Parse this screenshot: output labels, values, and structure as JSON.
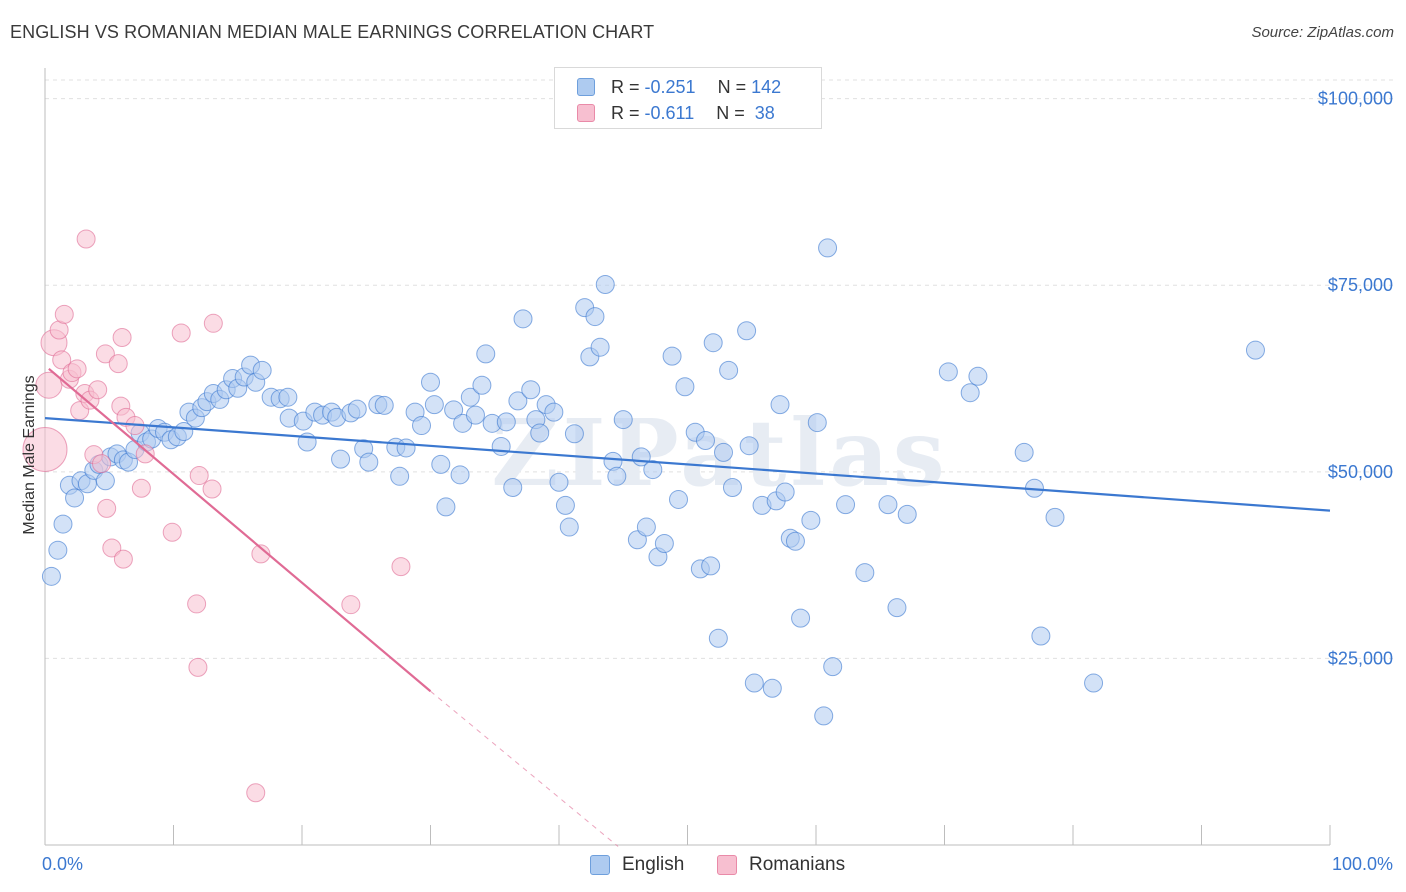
{
  "title": "ENGLISH VS ROMANIAN MEDIAN MALE EARNINGS CORRELATION CHART",
  "source": "Source: ZipAtlas.com",
  "watermark": "ZIPatlas",
  "legend": {
    "rows": [
      {
        "r_label": "R = ",
        "r_value": "-0.251",
        "n_label": "N = ",
        "n_value": "142",
        "fill": "#aecbf0",
        "stroke": "#6e9fdc"
      },
      {
        "r_label": "R = ",
        "r_value": "-0.611",
        "n_label": "N = ",
        "n_value": " 38",
        "fill": "#f7bfd0",
        "stroke": "#e98aa8"
      }
    ]
  },
  "bottom_legend": [
    {
      "label": "English",
      "fill": "#aecbf0",
      "stroke": "#6e9fdc"
    },
    {
      "label": "Romanians",
      "fill": "#f7bfd0",
      "stroke": "#e98aa8"
    }
  ],
  "chart_data": {
    "type": "scatter",
    "ylabel": "Median Male Earnings",
    "x_tick_labels": [
      "0.0%",
      "100.0%"
    ],
    "y_ticks": [
      {
        "value": 25000,
        "label": "$25,000"
      },
      {
        "value": 50000,
        "label": "$50,000"
      },
      {
        "value": 75000,
        "label": "$75,000"
      },
      {
        "value": 100000,
        "label": "$100,000"
      }
    ],
    "xlim": [
      0,
      100
    ],
    "ylim": [
      0,
      102500
    ],
    "grid": true,
    "series": [
      {
        "name": "English",
        "color": "#3b78d0",
        "fill": "#aecbf0",
        "trend": {
          "x0": 0,
          "y0": 57200,
          "x1": 100,
          "y1": 44800,
          "dashed_to": null
        },
        "points": [
          [
            0.5,
            36000
          ],
          [
            1.0,
            39500
          ],
          [
            1.4,
            43000
          ],
          [
            1.9,
            48200
          ],
          [
            2.3,
            46500
          ],
          [
            2.8,
            48800
          ],
          [
            3.3,
            48400
          ],
          [
            3.8,
            50200
          ],
          [
            4.2,
            51000
          ],
          [
            4.7,
            48800
          ],
          [
            5.1,
            52000
          ],
          [
            5.6,
            52400
          ],
          [
            6.1,
            51600
          ],
          [
            6.5,
            51300
          ],
          [
            7.0,
            53000
          ],
          [
            7.4,
            55200
          ],
          [
            7.9,
            54000
          ],
          [
            8.3,
            54400
          ],
          [
            8.8,
            55800
          ],
          [
            9.3,
            55300
          ],
          [
            9.8,
            54300
          ],
          [
            10.3,
            54700
          ],
          [
            10.8,
            55400
          ],
          [
            11.2,
            58000
          ],
          [
            11.7,
            57200
          ],
          [
            12.2,
            58600
          ],
          [
            12.6,
            59400
          ],
          [
            13.1,
            60500
          ],
          [
            13.6,
            59700
          ],
          [
            14.1,
            61000
          ],
          [
            14.6,
            62500
          ],
          [
            15.0,
            61200
          ],
          [
            15.5,
            62700
          ],
          [
            16.0,
            64300
          ],
          [
            16.4,
            62000
          ],
          [
            16.9,
            63600
          ],
          [
            17.6,
            60000
          ],
          [
            18.3,
            59800
          ],
          [
            18.9,
            60000
          ],
          [
            19.0,
            57200
          ],
          [
            20.1,
            56800
          ],
          [
            20.4,
            54000
          ],
          [
            21.0,
            58000
          ],
          [
            21.6,
            57600
          ],
          [
            22.3,
            58000
          ],
          [
            22.7,
            57300
          ],
          [
            23.0,
            51700
          ],
          [
            23.8,
            57900
          ],
          [
            24.3,
            58400
          ],
          [
            24.8,
            53100
          ],
          [
            25.2,
            51300
          ],
          [
            25.9,
            59000
          ],
          [
            26.4,
            58900
          ],
          [
            27.3,
            53300
          ],
          [
            27.6,
            49400
          ],
          [
            28.1,
            53200
          ],
          [
            28.8,
            58000
          ],
          [
            29.3,
            56200
          ],
          [
            30.0,
            62000
          ],
          [
            30.3,
            59000
          ],
          [
            30.8,
            51000
          ],
          [
            31.2,
            45300
          ],
          [
            31.8,
            58300
          ],
          [
            32.3,
            49600
          ],
          [
            32.5,
            56500
          ],
          [
            33.1,
            60000
          ],
          [
            33.5,
            57600
          ],
          [
            34.0,
            61600
          ],
          [
            34.3,
            65800
          ],
          [
            34.8,
            56500
          ],
          [
            35.5,
            53400
          ],
          [
            35.9,
            56700
          ],
          [
            36.4,
            47900
          ],
          [
            36.8,
            59500
          ],
          [
            37.2,
            70500
          ],
          [
            37.8,
            61000
          ],
          [
            38.2,
            57000
          ],
          [
            38.5,
            55200
          ],
          [
            39.0,
            59000
          ],
          [
            39.6,
            58000
          ],
          [
            40.0,
            48600
          ],
          [
            40.5,
            45500
          ],
          [
            40.8,
            42600
          ],
          [
            41.2,
            55100
          ],
          [
            42.0,
            72000
          ],
          [
            42.4,
            65400
          ],
          [
            42.8,
            70800
          ],
          [
            43.2,
            66700
          ],
          [
            43.6,
            75100
          ],
          [
            44.2,
            51400
          ],
          [
            44.5,
            49400
          ],
          [
            45.0,
            57000
          ],
          [
            46.1,
            40900
          ],
          [
            46.4,
            52000
          ],
          [
            46.8,
            42600
          ],
          [
            47.3,
            50300
          ],
          [
            47.7,
            38600
          ],
          [
            48.2,
            40400
          ],
          [
            48.8,
            65500
          ],
          [
            49.3,
            46300
          ],
          [
            49.8,
            61400
          ],
          [
            50.6,
            55300
          ],
          [
            51.0,
            37000
          ],
          [
            51.4,
            54200
          ],
          [
            51.8,
            37400
          ],
          [
            52.0,
            67300
          ],
          [
            52.4,
            27700
          ],
          [
            52.8,
            52600
          ],
          [
            53.2,
            63600
          ],
          [
            53.5,
            47900
          ],
          [
            54.6,
            68900
          ],
          [
            54.8,
            53500
          ],
          [
            55.2,
            21700
          ],
          [
            55.8,
            45500
          ],
          [
            56.6,
            21000
          ],
          [
            56.9,
            46100
          ],
          [
            57.2,
            59000
          ],
          [
            57.6,
            47300
          ],
          [
            58.0,
            41100
          ],
          [
            58.4,
            40700
          ],
          [
            58.8,
            30400
          ],
          [
            59.6,
            43500
          ],
          [
            60.1,
            56600
          ],
          [
            60.6,
            17300
          ],
          [
            60.9,
            80000
          ],
          [
            61.3,
            23900
          ],
          [
            62.3,
            45600
          ],
          [
            63.8,
            36500
          ],
          [
            65.6,
            45600
          ],
          [
            66.3,
            31800
          ],
          [
            67.1,
            44300
          ],
          [
            70.3,
            63400
          ],
          [
            72.0,
            60600
          ],
          [
            72.6,
            62800
          ],
          [
            76.2,
            52600
          ],
          [
            77.0,
            47800
          ],
          [
            77.5,
            28000
          ],
          [
            78.6,
            43900
          ],
          [
            81.6,
            21700
          ],
          [
            94.2,
            66300
          ]
        ]
      },
      {
        "name": "Romanians",
        "color": "#e06b95",
        "fill": "#f7bfd0",
        "trend": {
          "x0": 0.3,
          "y0": 63800,
          "x1": 30,
          "y1": 20600,
          "dashed_to": {
            "x": 44.6,
            "y": -200
          }
        },
        "points": [
          [
            0.0,
            53000
          ],
          [
            0.3,
            61600
          ],
          [
            0.7,
            67300
          ],
          [
            1.1,
            69000
          ],
          [
            1.3,
            65000
          ],
          [
            1.5,
            71100
          ],
          [
            1.9,
            62400
          ],
          [
            2.1,
            63300
          ],
          [
            2.5,
            63800
          ],
          [
            2.7,
            58200
          ],
          [
            3.1,
            60500
          ],
          [
            3.2,
            81200
          ],
          [
            3.5,
            59600
          ],
          [
            3.8,
            52300
          ],
          [
            4.1,
            61000
          ],
          [
            4.4,
            51100
          ],
          [
            4.7,
            65800
          ],
          [
            4.8,
            45100
          ],
          [
            5.2,
            39800
          ],
          [
            5.7,
            64500
          ],
          [
            5.9,
            58800
          ],
          [
            6.0,
            68000
          ],
          [
            6.1,
            38300
          ],
          [
            6.3,
            57300
          ],
          [
            7.0,
            56200
          ],
          [
            7.5,
            47800
          ],
          [
            7.8,
            52400
          ],
          [
            9.9,
            41900
          ],
          [
            10.6,
            68600
          ],
          [
            11.8,
            32300
          ],
          [
            11.9,
            23800
          ],
          [
            12.0,
            49500
          ],
          [
            13.0,
            47700
          ],
          [
            13.1,
            69900
          ],
          [
            16.4,
            7000
          ],
          [
            16.8,
            39000
          ],
          [
            23.8,
            32200
          ],
          [
            27.7,
            37300
          ]
        ]
      }
    ]
  }
}
